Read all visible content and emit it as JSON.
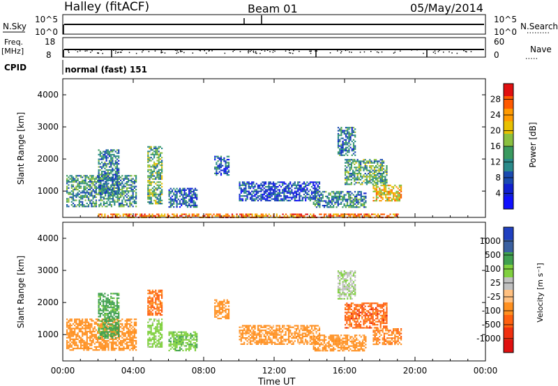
{
  "header": {
    "station": "Halley (fitACF)",
    "beam": "Beam 01",
    "date": "05/May/2014"
  },
  "nsky_panel": {
    "label": "N.Sky",
    "right_label": "N.Search",
    "left_ticks": [
      "10^5",
      "10^0"
    ],
    "right_ticks": [
      "10^5",
      "10^0"
    ]
  },
  "freq_panel": {
    "label_line1": "Freq.",
    "label_line2": "[MHz]",
    "right_label": "Nave",
    "left_ticks": [
      "18",
      "8"
    ],
    "right_ticks": [
      "60",
      "0"
    ]
  },
  "cpid_panel": {
    "label": "CPID",
    "text": "normal (fast) 151"
  },
  "chart_data": [
    {
      "type": "heatmap",
      "title": "",
      "ylabel": "Slant Range [km]",
      "xlabel": "",
      "x_ticks": [
        "00:00",
        "04:00",
        "08:00",
        "12:00",
        "16:00",
        "20:00",
        "00:00"
      ],
      "y_ticks": [
        "1000",
        "2000",
        "3000",
        "4000"
      ],
      "ylim": [
        180,
        4500
      ],
      "colorbar": {
        "label": "Power [dB]",
        "ticks": [
          "28",
          "24",
          "20",
          "16",
          "12",
          "8",
          "4"
        ],
        "colors": [
          "#e01010",
          "#ff5a00",
          "#ff9a00",
          "#e8c000",
          "#8ac040",
          "#3a9a60",
          "#2a8a8a",
          "#1a4ab0",
          "#1020d0",
          "#1010ff"
        ]
      },
      "echo_regions": [
        {
          "t_start": 0.2,
          "t_end": 4.2,
          "r_min": 500,
          "r_max": 1500,
          "power": 14
        },
        {
          "t_start": 2.0,
          "t_end": 3.2,
          "r_min": 900,
          "r_max": 2300,
          "power": 12
        },
        {
          "t_start": 4.8,
          "t_end": 5.6,
          "r_min": 600,
          "r_max": 2400,
          "power": 16
        },
        {
          "t_start": 6.0,
          "t_end": 7.6,
          "r_min": 500,
          "r_max": 1100,
          "power": 10
        },
        {
          "t_start": 8.6,
          "t_end": 9.4,
          "r_min": 1500,
          "r_max": 2100,
          "power": 10
        },
        {
          "t_start": 10.0,
          "t_end": 14.6,
          "r_min": 700,
          "r_max": 1300,
          "power": 9
        },
        {
          "t_start": 14.2,
          "t_end": 17.2,
          "r_min": 500,
          "r_max": 1000,
          "power": 13
        },
        {
          "t_start": 15.6,
          "t_end": 16.6,
          "r_min": 2100,
          "r_max": 3000,
          "power": 12
        },
        {
          "t_start": 16.0,
          "t_end": 18.4,
          "r_min": 1200,
          "r_max": 2000,
          "power": 15
        },
        {
          "t_start": 17.6,
          "t_end": 19.2,
          "r_min": 700,
          "r_max": 1200,
          "power": 22
        },
        {
          "t_start": 2.0,
          "t_end": 19.0,
          "r_min": 180,
          "r_max": 300,
          "power": 26
        }
      ]
    },
    {
      "type": "heatmap",
      "title": "",
      "ylabel": "Slant Range [km]",
      "xlabel": "Time UT",
      "x_ticks": [
        "00:00",
        "04:00",
        "08:00",
        "12:00",
        "16:00",
        "20:00",
        "00:00"
      ],
      "y_ticks": [
        "1000",
        "2000",
        "3000",
        "4000"
      ],
      "ylim": [
        180,
        4500
      ],
      "colorbar": {
        "label": "Velocity [m s⁻¹]",
        "ticks": [
          "1000",
          "500",
          "100",
          "25",
          "-25",
          "-100",
          "-500",
          "-1000"
        ],
        "colors": [
          "#2040c0",
          "#3a60a0",
          "#40a050",
          "#80d040",
          "#c0c0c0",
          "#ffc080",
          "#ff9020",
          "#ff6010",
          "#f03010",
          "#e01010"
        ]
      },
      "echo_regions": [
        {
          "t_start": 0.2,
          "t_end": 4.2,
          "r_min": 500,
          "r_max": 1500,
          "velocity": -200
        },
        {
          "t_start": 2.0,
          "t_end": 3.2,
          "r_min": 900,
          "r_max": 2300,
          "velocity": 150
        },
        {
          "t_start": 4.8,
          "t_end": 5.6,
          "r_min": 1600,
          "r_max": 2400,
          "velocity": -600
        },
        {
          "t_start": 4.8,
          "t_end": 5.6,
          "r_min": 600,
          "r_max": 1500,
          "velocity": 60
        },
        {
          "t_start": 6.0,
          "t_end": 7.6,
          "r_min": 500,
          "r_max": 1100,
          "velocity": 80
        },
        {
          "t_start": 8.6,
          "t_end": 9.4,
          "r_min": 1500,
          "r_max": 2100,
          "velocity": -300
        },
        {
          "t_start": 10.0,
          "t_end": 14.6,
          "r_min": 700,
          "r_max": 1300,
          "velocity": -150
        },
        {
          "t_start": 14.2,
          "t_end": 17.2,
          "r_min": 500,
          "r_max": 1000,
          "velocity": -180
        },
        {
          "t_start": 15.6,
          "t_end": 16.6,
          "r_min": 2100,
          "r_max": 3000,
          "velocity": 20
        },
        {
          "t_start": 16.0,
          "t_end": 18.4,
          "r_min": 1200,
          "r_max": 2000,
          "velocity": -700
        },
        {
          "t_start": 17.6,
          "t_end": 19.2,
          "r_min": 700,
          "r_max": 1200,
          "velocity": -400
        }
      ]
    }
  ]
}
